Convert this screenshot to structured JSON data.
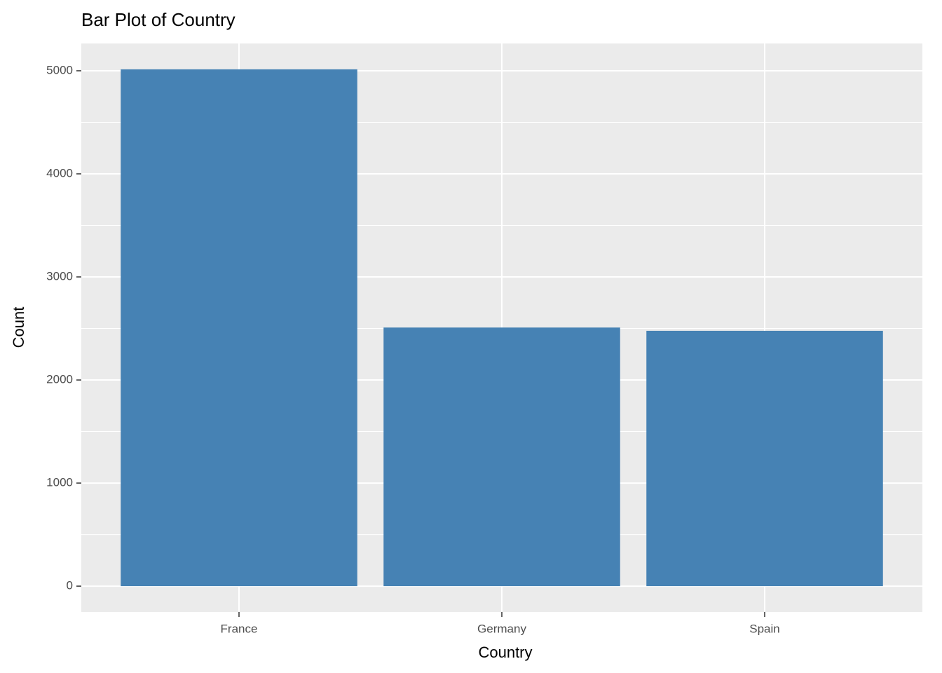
{
  "chart_data": {
    "type": "bar",
    "title": "Bar Plot of Country",
    "x_label": "Country",
    "y_label": "Count",
    "categories": [
      "France",
      "Germany",
      "Spain"
    ],
    "values": [
      5014,
      2509,
      2477
    ],
    "color": "#4682b4",
    "ylim": [
      -251,
      5265
    ],
    "yticks": [
      0,
      1000,
      2000,
      3000,
      4000,
      5000
    ],
    "minor_yticks": [
      500,
      1500,
      2500,
      3500,
      4500
    ],
    "grid": true
  }
}
